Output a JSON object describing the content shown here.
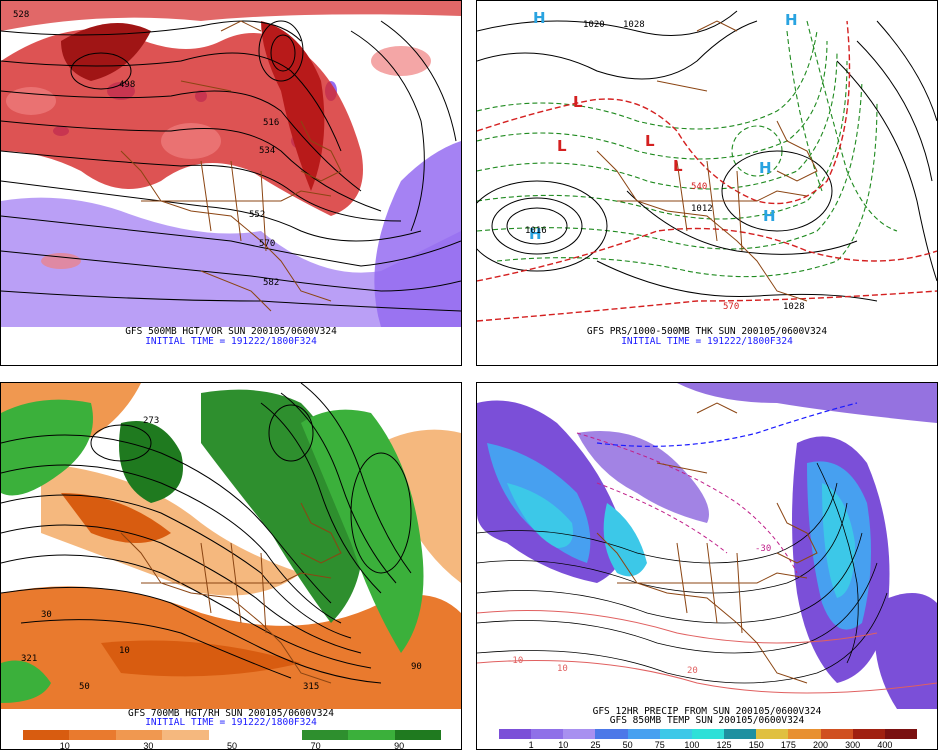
{
  "panels": [
    {
      "id": "tl",
      "caption_lines": [
        "GFS 500MB HGT/VOR SUN 200105/0600V324"
      ],
      "initial_time": "INITIAL TIME = 191222/1800F324",
      "labels": [
        "528",
        "498",
        "516",
        "534",
        "552",
        "570",
        "582"
      ]
    },
    {
      "id": "tr",
      "caption_lines": [
        "GFS PRS/1000-500MB THK SUN 200105/0600V324"
      ],
      "initial_time": "INITIAL TIME = 191222/1800F324",
      "labels": [
        "1020",
        "1028",
        "1016",
        "540",
        "570",
        "1012",
        "1028"
      ],
      "symbols": [
        "H",
        "H",
        "L",
        "L",
        "L",
        "L",
        "H",
        "H",
        "H"
      ]
    },
    {
      "id": "bl",
      "caption_lines": [
        "GFS 700MB HGT/RH SUN 200105/0600V324"
      ],
      "initial_time": "INITIAL TIME = 191222/1800F324",
      "labels": [
        "273",
        "30",
        "321",
        "10",
        "50",
        "90",
        "315"
      ],
      "colorbar": {
        "colors": [
          "#d85c10",
          "#e97a2e",
          "#f09850",
          "#f5b87e",
          "#ffffff",
          "#ffffff",
          "#2e8f2e",
          "#3bb03b",
          "#1f7a1f"
        ],
        "tick_labels": [
          "10",
          "30",
          "50",
          "70",
          "90"
        ]
      }
    },
    {
      "id": "br",
      "caption_lines": [
        "GFS 12HR PRECIP FROM SUN 200105/0600V324",
        "GFS 850MB TEMP SUN 200105/0600V324"
      ],
      "labels": [
        "-10",
        "10",
        "20",
        "-30"
      ],
      "colorbar": {
        "colors": [
          "#7b4fd8",
          "#8f70e8",
          "#a890f0",
          "#4c78e8",
          "#47a0f0",
          "#3cc8e8",
          "#2ee0d8",
          "#1e90a0",
          "#e0c040",
          "#e89030",
          "#d05020",
          "#a02010",
          "#7a1010"
        ],
        "tick_labels": [
          "1",
          "10",
          "25",
          "50",
          "75",
          "100",
          "125",
          "150",
          "175",
          "200",
          "300",
          "400"
        ]
      }
    }
  ]
}
